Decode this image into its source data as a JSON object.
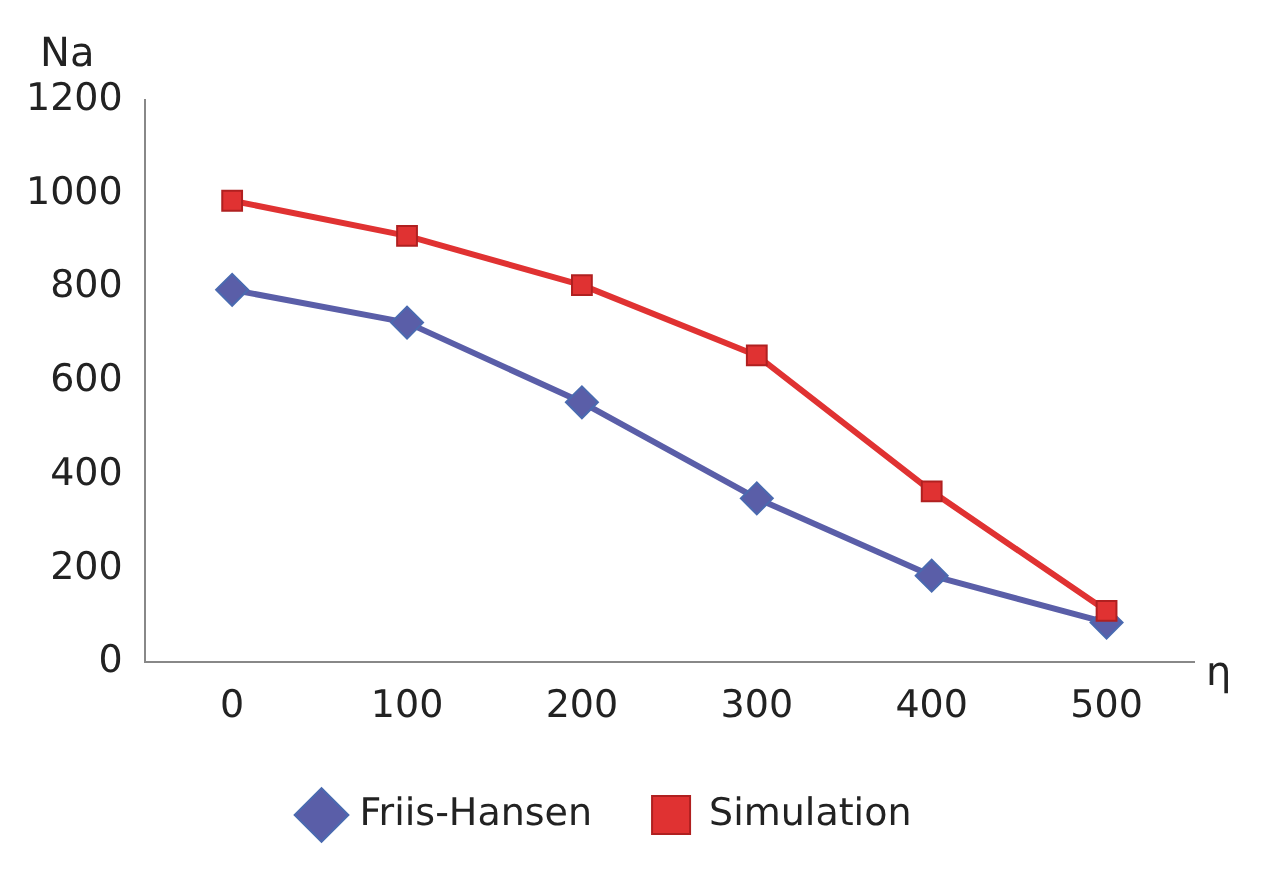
{
  "chart_data": {
    "type": "line",
    "xlabel": "η",
    "ylabel": "Na",
    "categories": [
      "0",
      "100",
      "200",
      "300",
      "400",
      "500"
    ],
    "series": [
      {
        "name": "Friis-Hansen",
        "color": "#5a5ea8",
        "marker": "diamond",
        "values": [
          795,
          725,
          555,
          350,
          185,
          85
        ]
      },
      {
        "name": "Simulation",
        "color": "#e03232",
        "marker": "square",
        "values": [
          985,
          910,
          805,
          655,
          365,
          110
        ]
      }
    ],
    "ylim": [
      0,
      1200
    ],
    "yticks": [
      0,
      200,
      400,
      600,
      800,
      1000,
      1200
    ],
    "grid": false,
    "legend": "bottom",
    "line_style": "solid"
  }
}
